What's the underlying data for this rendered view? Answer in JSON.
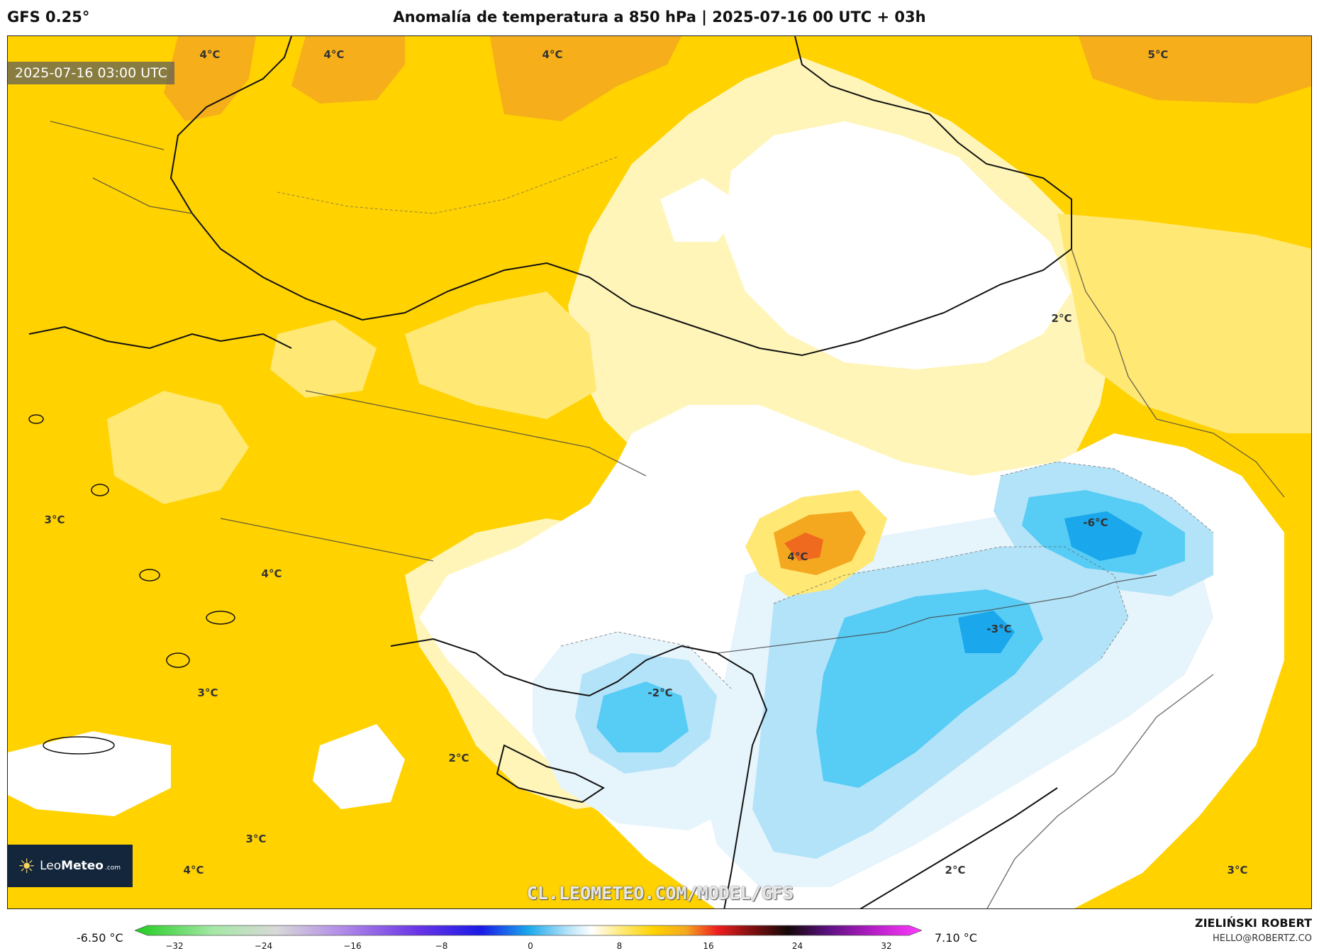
{
  "header": {
    "model": "GFS 0.25°",
    "title": "Anomalía de temperatura a 850 hPa | 2025-07-16 00 UTC + 03h"
  },
  "map": {
    "valid_time": "2025-07-16 03:00 UTC",
    "watermark": "CL.LEOMETEO.COM/MODEL/GFS",
    "logo": {
      "prefix": "Leo",
      "name": "Meteo",
      "suffix": ".com"
    },
    "colors": {
      "warm_deep": "#f4a820",
      "warm": "#ffd200",
      "warm_light": "#ffe873",
      "pale": "#fff5b8",
      "neutral": "#ffffff",
      "cold_light": "#e6f4fc",
      "cold": "#b3e3f8",
      "cold_mid": "#57ccf5",
      "cold_deep": "#1aa7ec",
      "hot_core": "#ef6a1f"
    },
    "labels": [
      {
        "text": "4°C"
      },
      {
        "text": "4°C"
      },
      {
        "text": "4°C"
      },
      {
        "text": "5°C"
      },
      {
        "text": "2°C"
      },
      {
        "text": "3°C"
      },
      {
        "text": "4°C"
      },
      {
        "text": "-6°C"
      },
      {
        "text": "4°C"
      },
      {
        "text": "-3°C"
      },
      {
        "text": "3°C"
      },
      {
        "text": "-2°C"
      },
      {
        "text": "2°C"
      },
      {
        "text": "3°C"
      },
      {
        "text": "4°C"
      },
      {
        "text": "2°C"
      },
      {
        "text": "3°C"
      }
    ]
  },
  "colorbar": {
    "min_label": "-6.50 °C",
    "max_label": "7.10 °C",
    "ticks": [
      "−32",
      "−24",
      "−16",
      "−8",
      "0",
      "8",
      "16",
      "24",
      "32"
    ]
  },
  "author": {
    "name": "ZIELIŃSKI ROBERT",
    "email": "HELLO@ROBERTZ.CO"
  }
}
